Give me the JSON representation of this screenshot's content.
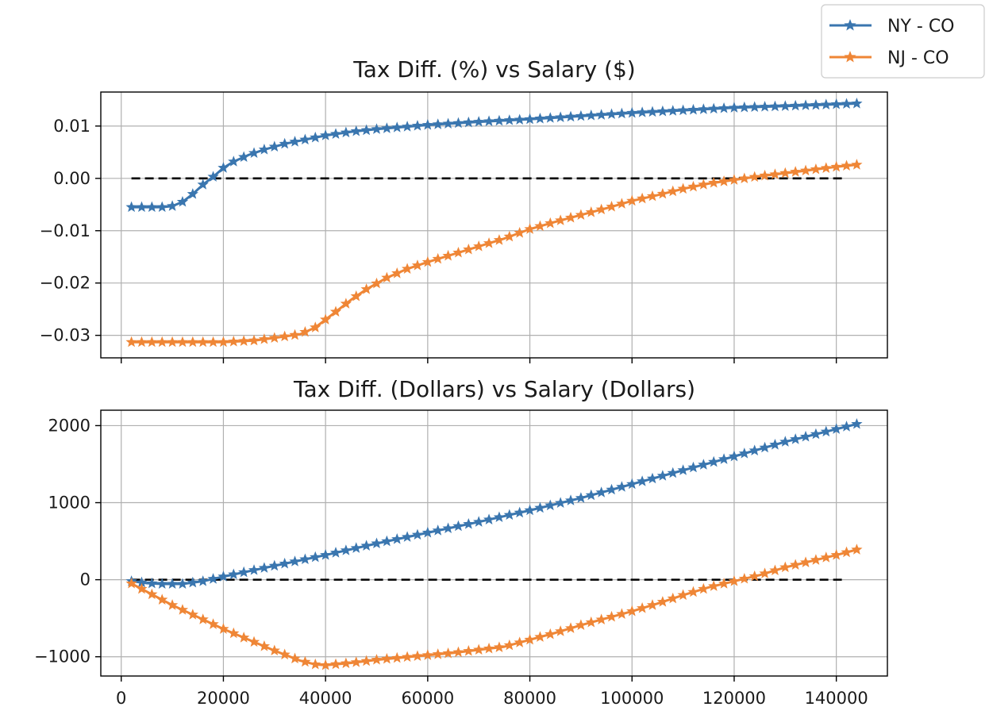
{
  "legend": {
    "placement": "top-right",
    "entries": [
      {
        "label": "NY - CO",
        "color": "#3a76af",
        "marker": "star"
      },
      {
        "label": "NJ - CO",
        "color": "#ef8636",
        "marker": "star"
      }
    ]
  },
  "chart_data": [
    {
      "type": "line",
      "title": "Tax Diff. (%) vs Salary ($)",
      "xlabel": "",
      "ylabel": "",
      "xlim": [
        -4000,
        150000
      ],
      "ylim": [
        -0.0343,
        0.0165
      ],
      "x_ticks": [
        0,
        20000,
        40000,
        60000,
        80000,
        100000,
        120000,
        140000
      ],
      "x_tick_labels_shown": false,
      "y_ticks": [
        -0.03,
        -0.02,
        -0.01,
        0.0,
        0.01
      ],
      "y_tick_labels": [
        "−0.03",
        "−0.02",
        "−0.01",
        "0.00",
        "0.01"
      ],
      "grid": true,
      "reference_line": {
        "y": 0,
        "style": "dashed",
        "color": "#000000",
        "x_range": [
          2000,
          142000
        ]
      },
      "series": [
        {
          "name": "NY - CO",
          "color": "#3a76af",
          "marker": "star",
          "points": [
            [
              2000,
              -0.0055
            ],
            [
              5000,
              -0.0055
            ],
            [
              8000,
              -0.0055
            ],
            [
              10000,
              -0.0053
            ],
            [
              12000,
              -0.0045
            ],
            [
              14000,
              -0.003
            ],
            [
              16000,
              -0.0012
            ],
            [
              18000,
              0.0003
            ],
            [
              20000,
              0.002
            ],
            [
              22000,
              0.0032
            ],
            [
              25000,
              0.0045
            ],
            [
              28000,
              0.0055
            ],
            [
              32000,
              0.0066
            ],
            [
              36000,
              0.0074
            ],
            [
              40000,
              0.0082
            ],
            [
              45000,
              0.0089
            ],
            [
              50000,
              0.0094
            ],
            [
              60000,
              0.0102
            ],
            [
              70000,
              0.0108
            ],
            [
              80000,
              0.0113
            ],
            [
              90000,
              0.0119
            ],
            [
              100000,
              0.0125
            ],
            [
              110000,
              0.013
            ],
            [
              120000,
              0.0135
            ],
            [
              130000,
              0.0138
            ],
            [
              144000,
              0.0143
            ]
          ]
        },
        {
          "name": "NJ - CO",
          "color": "#ef8636",
          "marker": "star",
          "points": [
            [
              2000,
              -0.0313
            ],
            [
              10000,
              -0.0313
            ],
            [
              20000,
              -0.0313
            ],
            [
              26000,
              -0.031
            ],
            [
              30000,
              -0.0305
            ],
            [
              35000,
              -0.0298
            ],
            [
              38000,
              -0.0285
            ],
            [
              40000,
              -0.027
            ],
            [
              42000,
              -0.0255
            ],
            [
              45000,
              -0.0232
            ],
            [
              48000,
              -0.0212
            ],
            [
              52000,
              -0.019
            ],
            [
              56000,
              -0.0173
            ],
            [
              60000,
              -0.016
            ],
            [
              65000,
              -0.0145
            ],
            [
              70000,
              -0.013
            ],
            [
              75000,
              -0.0115
            ],
            [
              80000,
              -0.0097
            ],
            [
              85000,
              -0.0083
            ],
            [
              90000,
              -0.007
            ],
            [
              95000,
              -0.0057
            ],
            [
              100000,
              -0.0043
            ],
            [
              105000,
              -0.0032
            ],
            [
              110000,
              -0.002
            ],
            [
              115000,
              -0.001
            ],
            [
              120000,
              -0.0003
            ],
            [
              125000,
              0.0004
            ],
            [
              130000,
              0.001
            ],
            [
              135000,
              0.0016
            ],
            [
              140000,
              0.0022
            ],
            [
              144000,
              0.0026
            ]
          ]
        }
      ]
    },
    {
      "type": "line",
      "title": "Tax Diff. (Dollars) vs Salary (Dollars)",
      "xlabel": "",
      "ylabel": "",
      "xlim": [
        -4000,
        150000
      ],
      "ylim": [
        -1250,
        2200
      ],
      "x_ticks": [
        0,
        20000,
        40000,
        60000,
        80000,
        100000,
        120000,
        140000
      ],
      "x_tick_labels": [
        "0",
        "20000",
        "40000",
        "60000",
        "80000",
        "100000",
        "120000",
        "140000"
      ],
      "x_tick_labels_shown": true,
      "y_ticks": [
        -1000,
        0,
        1000,
        2000
      ],
      "y_tick_labels": [
        "−1000",
        "0",
        "1000",
        "2000"
      ],
      "grid": true,
      "reference_line": {
        "y": 0,
        "style": "dashed",
        "color": "#000000",
        "x_range": [
          2000,
          142000
        ]
      },
      "series": [
        {
          "name": "NY - CO",
          "color": "#3a76af",
          "marker": "star",
          "points": [
            [
              2000,
              -20
            ],
            [
              5000,
              -45
            ],
            [
              8000,
              -55
            ],
            [
              12000,
              -55
            ],
            [
              16000,
              -20
            ],
            [
              20000,
              40
            ],
            [
              25000,
              110
            ],
            [
              30000,
              180
            ],
            [
              35000,
              250
            ],
            [
              40000,
              320
            ],
            [
              50000,
              470
            ],
            [
              60000,
              610
            ],
            [
              70000,
              750
            ],
            [
              80000,
              900
            ],
            [
              90000,
              1060
            ],
            [
              100000,
              1240
            ],
            [
              110000,
              1420
            ],
            [
              120000,
              1600
            ],
            [
              130000,
              1790
            ],
            [
              144000,
              2020
            ]
          ]
        },
        {
          "name": "NJ - CO",
          "color": "#ef8636",
          "marker": "star",
          "points": [
            [
              2000,
              -50
            ],
            [
              10000,
              -330
            ],
            [
              20000,
              -640
            ],
            [
              30000,
              -920
            ],
            [
              35000,
              -1050
            ],
            [
              38000,
              -1100
            ],
            [
              40000,
              -1110
            ],
            [
              45000,
              -1080
            ],
            [
              50000,
              -1040
            ],
            [
              55000,
              -1010
            ],
            [
              60000,
              -980
            ],
            [
              65000,
              -950
            ],
            [
              70000,
              -910
            ],
            [
              75000,
              -870
            ],
            [
              80000,
              -780
            ],
            [
              85000,
              -690
            ],
            [
              90000,
              -590
            ],
            [
              95000,
              -500
            ],
            [
              100000,
              -410
            ],
            [
              105000,
              -310
            ],
            [
              110000,
              -200
            ],
            [
              115000,
              -100
            ],
            [
              120000,
              -20
            ],
            [
              125000,
              60
            ],
            [
              130000,
              160
            ],
            [
              135000,
              240
            ],
            [
              140000,
              320
            ],
            [
              144000,
              390
            ]
          ]
        }
      ]
    }
  ]
}
